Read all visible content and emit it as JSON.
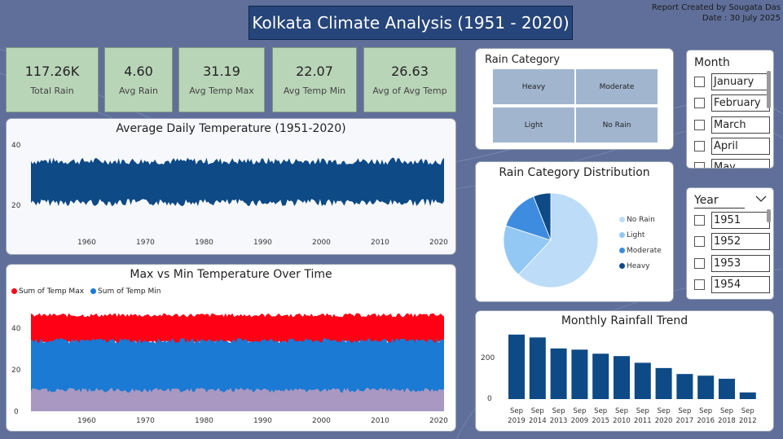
{
  "header": {
    "title": "Kolkata Climate Analysis (1951 - 2020)",
    "credit_line1": "Report Created by Sougata Das",
    "credit_line2": "Date : 30 July 2025"
  },
  "kpis": [
    {
      "value": "117.26K",
      "label": "Total Rain"
    },
    {
      "value": "4.60",
      "label": "Avg Rain"
    },
    {
      "value": "31.19",
      "label": "Avg Temp Max"
    },
    {
      "value": "22.07",
      "label": "Avg Temp Min"
    },
    {
      "value": "26.63",
      "label": "Avg of Avg Temp"
    }
  ],
  "avg_temp_chart": {
    "title": "Average Daily Temperature (1951-2020)",
    "y_ticks": [
      "40",
      "20"
    ],
    "x_ticks": [
      "1960",
      "1970",
      "1980",
      "1990",
      "2000",
      "2010",
      "2020"
    ]
  },
  "maxmin_chart": {
    "title": "Max vs Min Temperature Over Time",
    "legend": [
      "Sum of Temp Max",
      "Sum of Temp Min"
    ],
    "y_ticks": [
      "40",
      "20",
      "0"
    ],
    "x_ticks": [
      "1960",
      "1970",
      "1980",
      "1990",
      "2000",
      "2010",
      "2020"
    ]
  },
  "rain_category": {
    "title": "Rain Category",
    "cells": [
      "Heavy",
      "Moderate",
      "Light",
      "No Rain"
    ]
  },
  "distribution": {
    "title": "Rain Category Distribution",
    "legend": [
      "No Rain",
      "Light",
      "Moderate",
      "Heavy"
    ]
  },
  "month_slicer": {
    "title": "Month",
    "items": [
      "January",
      "February",
      "March",
      "April",
      "May"
    ]
  },
  "year_slicer": {
    "title": "Year",
    "items": [
      "1951",
      "1952",
      "1953",
      "1954"
    ]
  },
  "chart_data": [
    {
      "type": "area",
      "title": "Average Daily Temperature (1951-2020)",
      "x_range": [
        1951,
        2020
      ],
      "ylim": [
        10,
        45
      ],
      "y_band": [
        22,
        34
      ],
      "color": "#0d4a86"
    },
    {
      "type": "area",
      "title": "Max vs Min Temperature Over Time",
      "x_range": [
        1951,
        2020
      ],
      "ylim": [
        0,
        45
      ],
      "series": [
        {
          "name": "Sum of Temp Max",
          "band": [
            30,
            40
          ],
          "color": "#ff0015"
        },
        {
          "name": "Sum of Temp Min",
          "band": [
            10,
            29
          ],
          "color": "#1a7ad4"
        }
      ]
    },
    {
      "type": "pie",
      "title": "Rain Category Distribution",
      "categories": [
        "No Rain",
        "Light",
        "Moderate",
        "Heavy"
      ],
      "values": [
        62,
        18,
        14,
        6
      ],
      "colors": [
        "#bcdcf7",
        "#93c8f5",
        "#3d8ce0",
        "#0d4a86"
      ]
    },
    {
      "type": "bar",
      "title": "Monthly Rainfall Trend",
      "categories": [
        "Sep 2019",
        "Sep 2014",
        "Sep 2013",
        "Sep 2009",
        "Sep 2015",
        "Sep 2010",
        "Sep 2011",
        "Sep 2020",
        "Sep 2017",
        "Sep 2016",
        "Sep 2018",
        "Sep 2012"
      ],
      "values": [
        270,
        258,
        212,
        207,
        190,
        180,
        152,
        130,
        105,
        98,
        85,
        28
      ],
      "y_ticks": [
        "200",
        "0"
      ],
      "ylim": [
        0,
        300
      ],
      "color": "#0d4a86"
    }
  ]
}
